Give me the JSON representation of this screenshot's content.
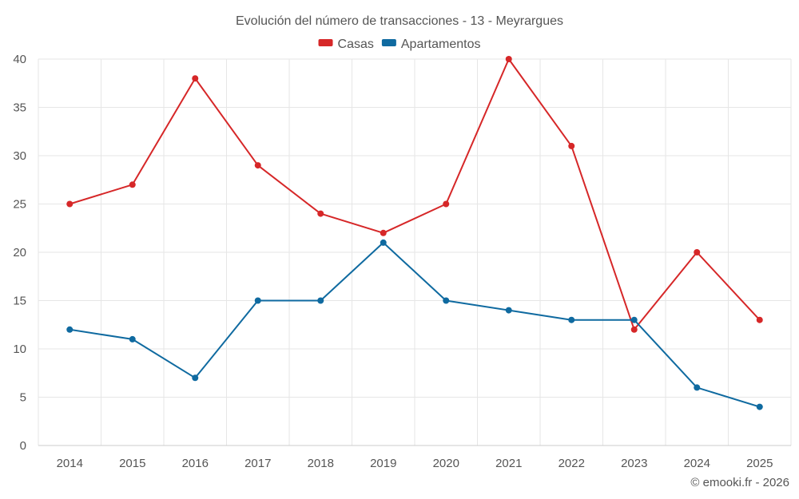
{
  "chart_data": {
    "type": "line",
    "title": "Evolución del número de transacciones - 13 - Meyrargues",
    "xlabel": "",
    "ylabel": "",
    "categories": [
      "2014",
      "2015",
      "2016",
      "2017",
      "2018",
      "2019",
      "2020",
      "2021",
      "2022",
      "2023",
      "2024",
      "2025"
    ],
    "ylim": [
      0,
      40
    ],
    "yticks": [
      0,
      5,
      10,
      15,
      20,
      25,
      30,
      35,
      40
    ],
    "grid": true,
    "legend_position": "top-center",
    "series": [
      {
        "name": "Casas",
        "color": "#d62728",
        "values": [
          25,
          27,
          38,
          29,
          24,
          22,
          25,
          40,
          31,
          12,
          20,
          13
        ]
      },
      {
        "name": "Apartamentos",
        "color": "#0f6aa0",
        "values": [
          12,
          11,
          7,
          15,
          15,
          21,
          15,
          14,
          13,
          13,
          6,
          4
        ]
      }
    ]
  },
  "credit": "© emooki.fr - 2026"
}
